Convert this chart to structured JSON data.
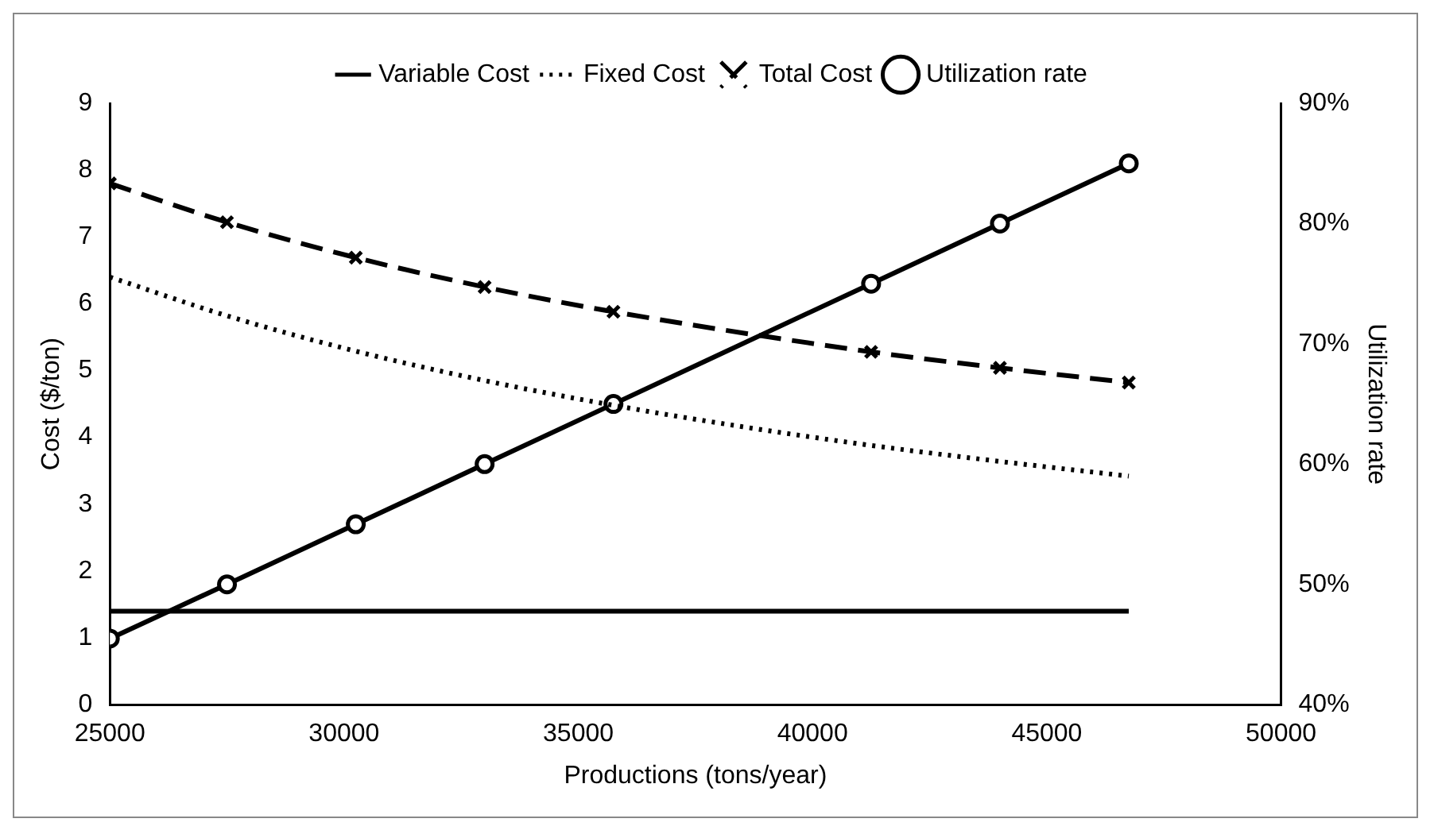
{
  "chart_data": {
    "type": "line",
    "xlabel": "Productions (tons/year)",
    "ylabel": "Cost ($/ton)",
    "y2label": "Utilization rate",
    "xlim": [
      25000,
      50000
    ],
    "xticks": [
      25000,
      30000,
      35000,
      40000,
      45000,
      50000
    ],
    "ylim": [
      0,
      9
    ],
    "yticks": [
      0,
      1,
      2,
      3,
      4,
      5,
      6,
      7,
      8,
      9
    ],
    "y2lim": [
      40,
      90
    ],
    "y2ticks": [
      {
        "value": 40,
        "label": "40%"
      },
      {
        "value": 50,
        "label": "50%"
      },
      {
        "value": 60,
        "label": "60%"
      },
      {
        "value": 70,
        "label": "70%"
      },
      {
        "value": 80,
        "label": "80%"
      },
      {
        "value": 90,
        "label": "90%"
      }
    ],
    "grid": false,
    "legend": "top",
    "series": [
      {
        "name": "Variable Cost",
        "color": "#000000",
        "line_style": "solid",
        "marker": "none",
        "x": [
          25000,
          46750
        ],
        "values": [
          1.4,
          1.4
        ]
      },
      {
        "name": "Fixed Cost",
        "color": "#000000",
        "line_style": "dotted",
        "marker": "none",
        "x": [
          25000,
          27500,
          30250,
          33000,
          35750,
          38500,
          41250,
          44000,
          46750
        ],
        "values": [
          6.4,
          5.82,
          5.29,
          4.85,
          4.48,
          4.16,
          3.88,
          3.64,
          3.42
        ]
      },
      {
        "name": "Total Cost",
        "color": "#000000",
        "line_style": "dashed",
        "marker": "cross",
        "x": [
          25000,
          27500,
          30250,
          33000,
          35750,
          41250,
          44000,
          46750
        ],
        "values": [
          7.8,
          7.22,
          6.69,
          6.25,
          5.88,
          5.28,
          5.04,
          4.82
        ]
      },
      {
        "name": "Utilization rate",
        "color": "#000000",
        "line_style": "solid",
        "marker": "circle",
        "axis": "y2",
        "x": [
          25000,
          27500,
          30250,
          33000,
          35750,
          41250,
          44000,
          46750
        ],
        "values": [
          45.5,
          50,
          55,
          60,
          65,
          75,
          80,
          85
        ]
      }
    ]
  }
}
